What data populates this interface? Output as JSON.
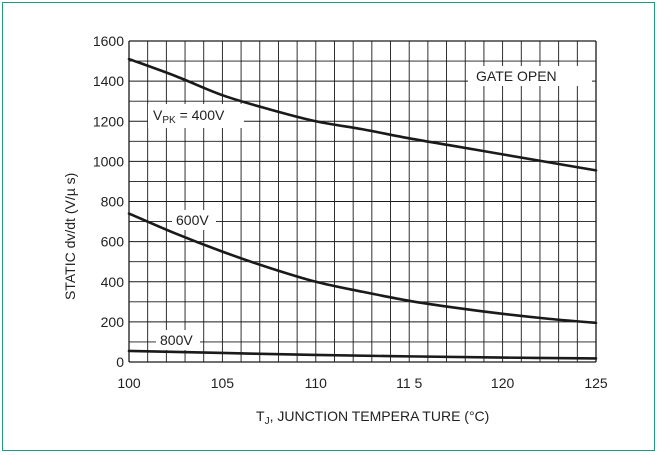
{
  "colors": {
    "frame": "#1f9c7c",
    "grid": "#1a1a1a",
    "curve": "#1a1a1a"
  },
  "chart_data": {
    "type": "line",
    "xlabel_main": "T",
    "xlabel_sub": "J",
    "xlabel_rest": ", JUNCTION TEMPERA TURE (°C)",
    "ylabel": "STATIC dv/dt (V/µ s)",
    "xlim": [
      100,
      125
    ],
    "ylim": [
      0,
      1600
    ],
    "x_ticks": [
      100,
      105,
      110,
      115,
      120,
      125
    ],
    "x_tick_labels": [
      "100",
      "105",
      "110",
      "11 5",
      "120",
      "125"
    ],
    "y_ticks": [
      0,
      200,
      400,
      600,
      800,
      1000,
      1200,
      1400,
      1600
    ],
    "y_tick_labels": [
      "0",
      "200",
      "400",
      "600",
      "800",
      "1000",
      "1200",
      "1400",
      "1600"
    ],
    "grid": true,
    "annotations": {
      "condition": "GATE OPEN",
      "s400_main": "V",
      "s400_sub": "PK",
      "s400_rest": " = 400V",
      "s600": "600V",
      "s800": "800V"
    },
    "series": [
      {
        "id": "400V",
        "x": [
          100,
          102.5,
          105,
          107.5,
          110,
          112.5,
          115,
          117.5,
          120,
          122.5,
          125
        ],
        "y": [
          1510,
          1425,
          1330,
          1260,
          1200,
          1160,
          1115,
          1075,
          1035,
          995,
          955
        ]
      },
      {
        "id": "600V",
        "x": [
          100,
          102.5,
          105,
          107.5,
          110,
          112.5,
          115,
          117.5,
          120,
          122.5,
          125
        ],
        "y": [
          740,
          640,
          550,
          470,
          400,
          350,
          305,
          270,
          240,
          215,
          195
        ]
      },
      {
        "id": "800V",
        "x": [
          100,
          105,
          110,
          115,
          120,
          125
        ],
        "y": [
          55,
          45,
          35,
          28,
          22,
          18
        ]
      }
    ]
  }
}
